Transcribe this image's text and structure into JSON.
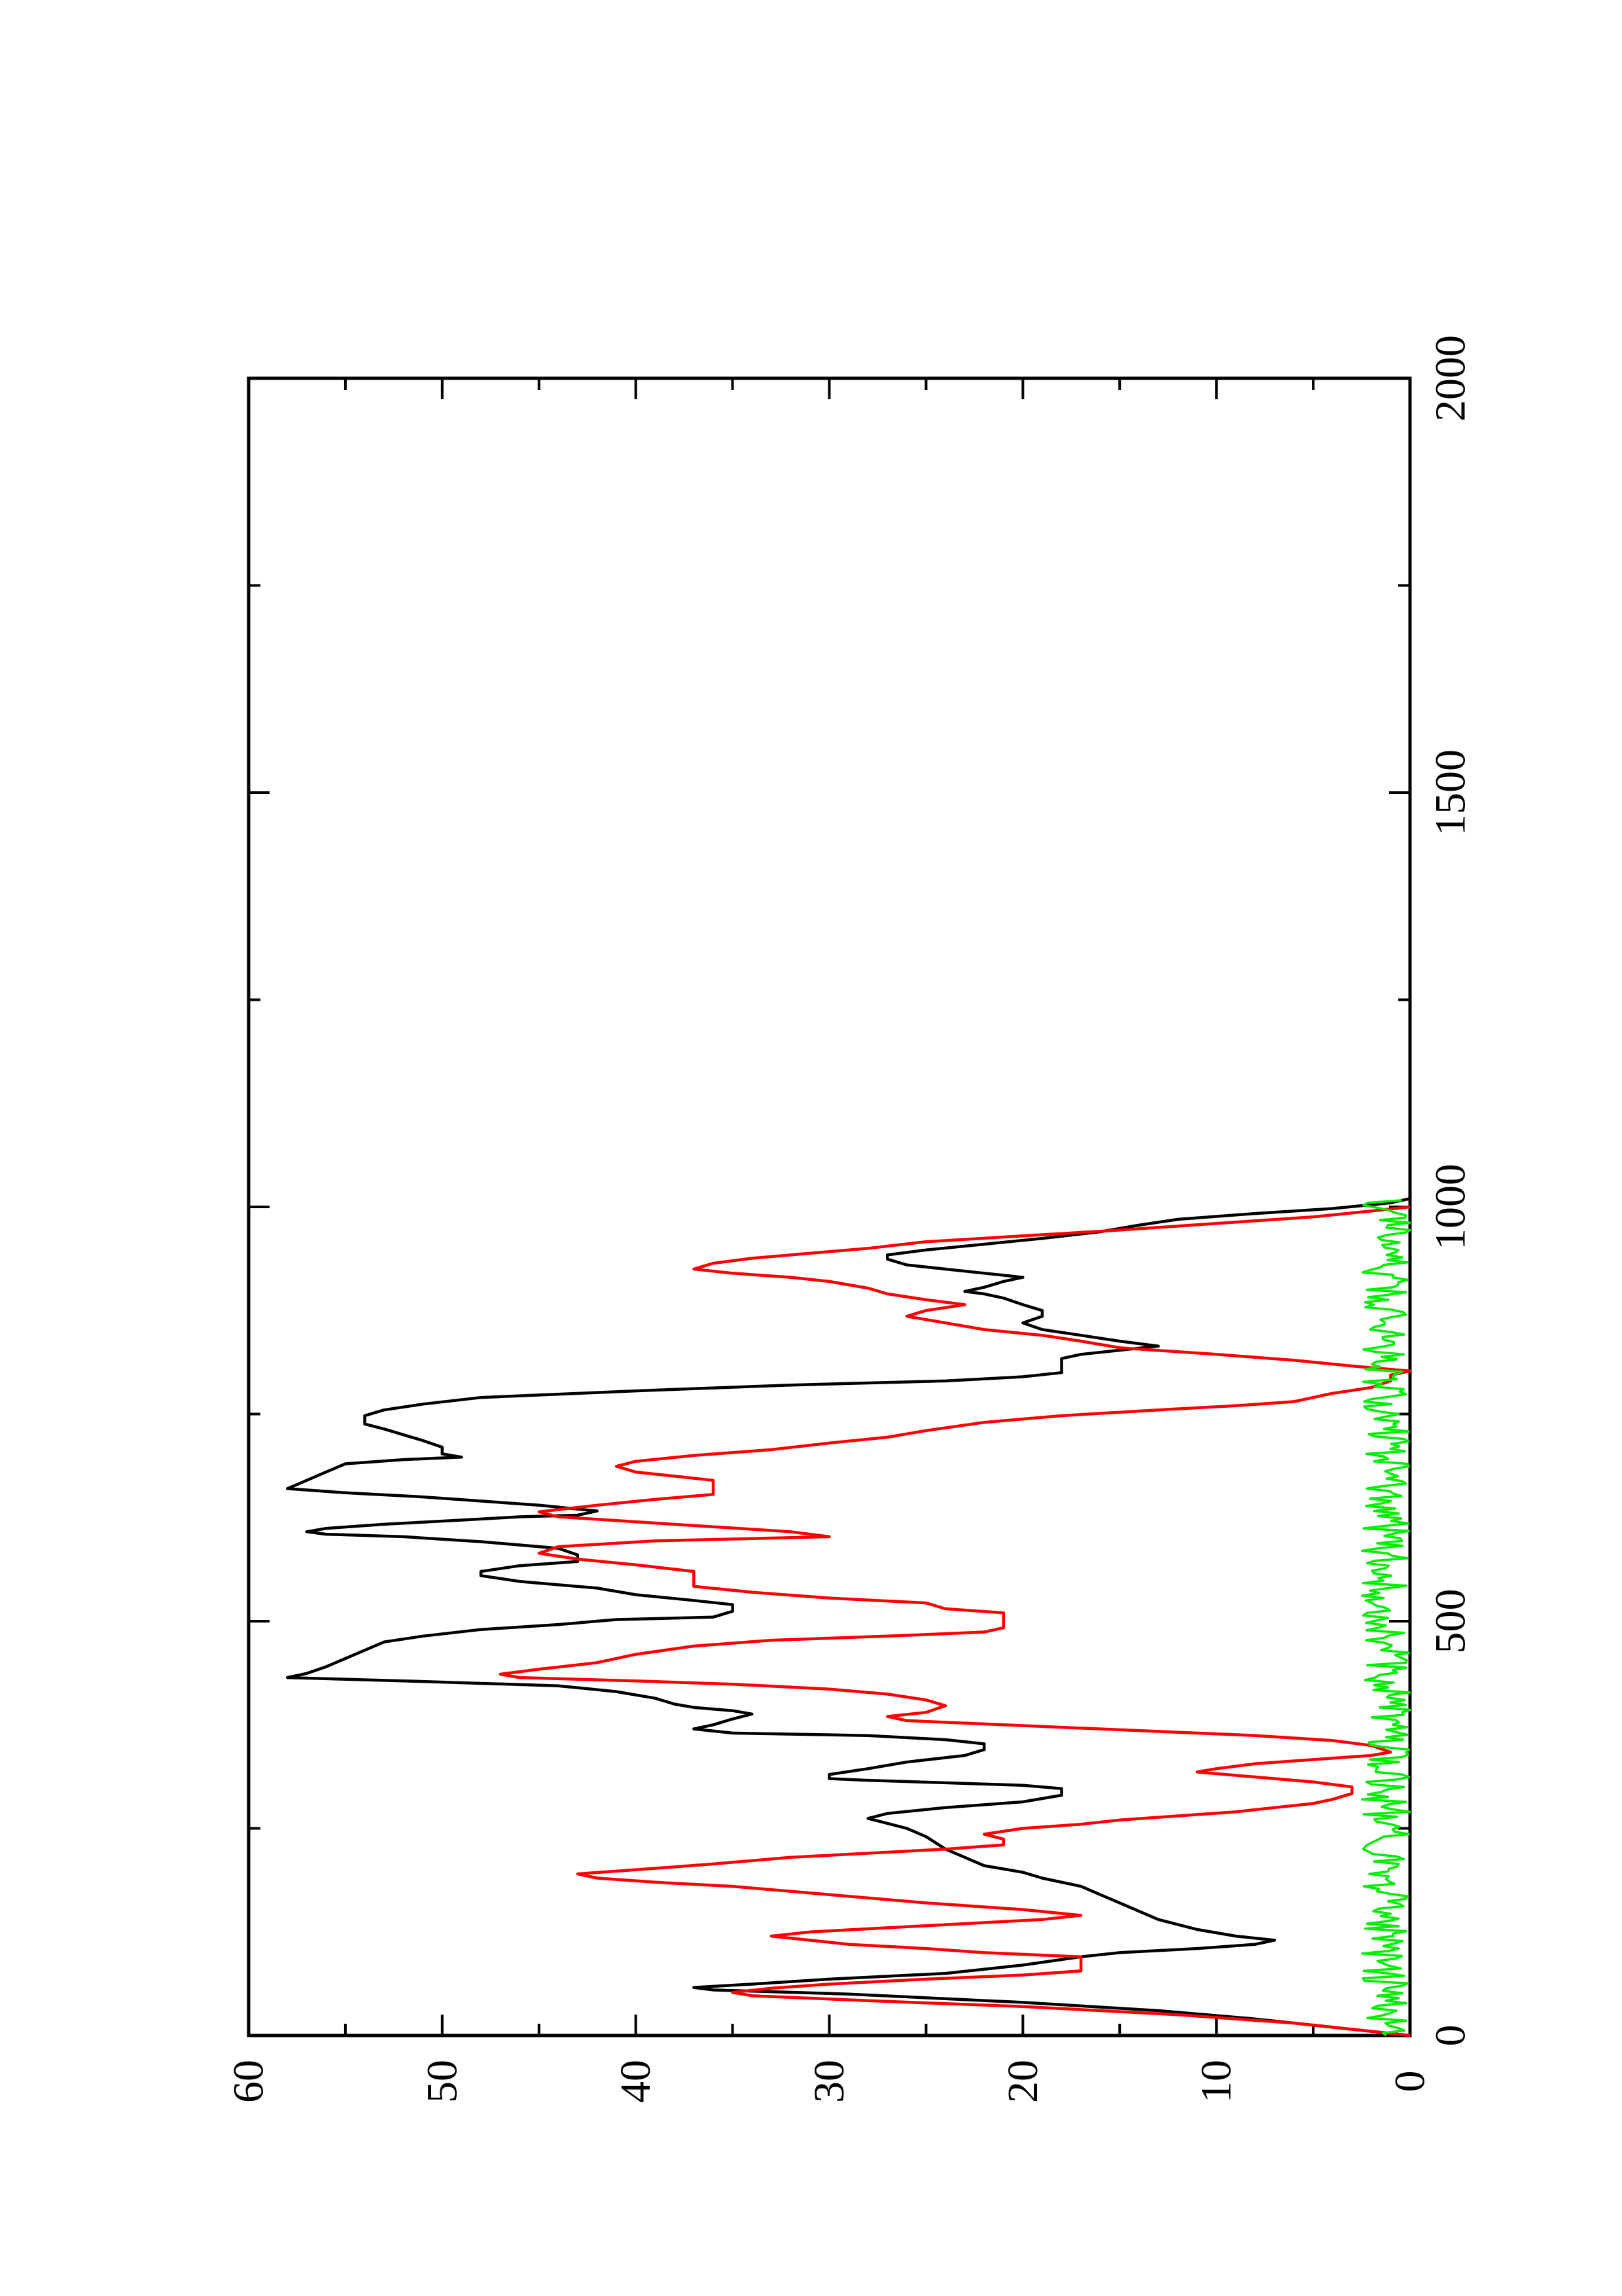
{
  "chart_data": {
    "type": "line",
    "orientation": "rotated-90-counterclockwise",
    "title": "",
    "xlabel": "",
    "ylabel": "",
    "xlim": [
      0,
      2000
    ],
    "ylim": [
      0,
      60
    ],
    "x_ticks_major": [
      0,
      500,
      1000,
      1500,
      2000
    ],
    "x_tick_labels": [
      "0",
      "500",
      "1000",
      "1500",
      "2000"
    ],
    "x_ticks_minor": [
      250,
      750,
      1250,
      1750
    ],
    "y_ticks_major": [
      0,
      10,
      20,
      30,
      40,
      50,
      60
    ],
    "y_tick_labels": [
      "0",
      "10",
      "20",
      "30",
      "40",
      "50",
      "60"
    ],
    "y_ticks_minor": [
      5,
      15,
      25,
      35,
      45,
      55
    ],
    "grid": false,
    "legend": "none",
    "series": [
      {
        "color": "#000000",
        "points": [
          [
            0,
            0
          ],
          [
            10,
            4
          ],
          [
            20,
            8
          ],
          [
            30,
            13
          ],
          [
            40,
            20
          ],
          [
            50,
            29
          ],
          [
            55,
            36
          ],
          [
            58,
            37
          ],
          [
            62,
            34
          ],
          [
            68,
            30
          ],
          [
            75,
            24
          ],
          [
            85,
            20
          ],
          [
            95,
            17
          ],
          [
            100,
            15
          ],
          [
            105,
            11
          ],
          [
            110,
            8
          ],
          [
            115,
            7
          ],
          [
            120,
            9
          ],
          [
            128,
            11
          ],
          [
            140,
            13
          ],
          [
            150,
            14
          ],
          [
            160,
            15
          ],
          [
            170,
            16
          ],
          [
            180,
            17
          ],
          [
            190,
            19
          ],
          [
            197,
            20
          ],
          [
            205,
            22
          ],
          [
            215,
            23
          ],
          [
            225,
            24
          ],
          [
            240,
            25
          ],
          [
            250,
            26
          ],
          [
            262,
            28
          ],
          [
            268,
            27
          ],
          [
            275,
            24
          ],
          [
            282,
            20
          ],
          [
            290,
            18
          ],
          [
            298,
            18
          ],
          [
            302,
            20
          ],
          [
            305,
            24
          ],
          [
            308,
            28
          ],
          [
            310,
            30
          ],
          [
            315,
            30
          ],
          [
            322,
            28
          ],
          [
            330,
            26
          ],
          [
            338,
            23
          ],
          [
            345,
            22
          ],
          [
            352,
            22
          ],
          [
            357,
            24
          ],
          [
            362,
            28
          ],
          [
            365,
            35
          ],
          [
            370,
            37
          ],
          [
            375,
            36
          ],
          [
            382,
            35
          ],
          [
            388,
            34
          ],
          [
            392,
            35
          ],
          [
            396,
            37
          ],
          [
            400,
            38
          ],
          [
            407,
            39
          ],
          [
            415,
            41
          ],
          [
            422,
            44
          ],
          [
            428,
            52
          ],
          [
            432,
            58
          ],
          [
            437,
            57
          ],
          [
            445,
            56
          ],
          [
            455,
            55
          ],
          [
            465,
            54
          ],
          [
            475,
            53
          ],
          [
            482,
            51
          ],
          [
            490,
            48
          ],
          [
            496,
            44
          ],
          [
            502,
            41
          ],
          [
            505,
            36
          ],
          [
            512,
            35
          ],
          [
            520,
            35
          ],
          [
            525,
            37
          ],
          [
            532,
            40
          ],
          [
            540,
            42
          ],
          [
            548,
            46
          ],
          [
            555,
            48
          ],
          [
            560,
            48
          ],
          [
            567,
            46
          ],
          [
            572,
            43
          ],
          [
            580,
            43
          ],
          [
            588,
            44
          ],
          [
            596,
            48
          ],
          [
            602,
            52
          ],
          [
            605,
            56
          ],
          [
            608,
            57
          ],
          [
            612,
            56
          ],
          [
            617,
            53
          ],
          [
            622,
            49
          ],
          [
            626,
            46
          ],
          [
            628,
            43
          ],
          [
            633,
            42
          ],
          [
            640,
            45
          ],
          [
            645,
            48
          ],
          [
            650,
            51
          ],
          [
            655,
            55
          ],
          [
            660,
            58
          ],
          [
            670,
            57
          ],
          [
            680,
            56
          ],
          [
            690,
            55
          ],
          [
            695,
            52
          ],
          [
            698,
            49
          ],
          [
            702,
            50
          ],
          [
            710,
            50
          ],
          [
            718,
            51
          ],
          [
            725,
            52
          ],
          [
            732,
            53
          ],
          [
            738,
            54
          ],
          [
            748,
            54
          ],
          [
            755,
            53
          ],
          [
            762,
            51
          ],
          [
            770,
            48
          ],
          [
            778,
            40
          ],
          [
            785,
            32
          ],
          [
            790,
            24
          ],
          [
            795,
            20
          ],
          [
            800,
            18
          ],
          [
            805,
            18
          ],
          [
            810,
            18
          ],
          [
            817,
            18
          ],
          [
            822,
            17
          ],
          [
            827,
            15
          ],
          [
            832,
            13
          ],
          [
            838,
            15
          ],
          [
            845,
            17
          ],
          [
            852,
            19
          ],
          [
            860,
            20
          ],
          [
            868,
            19
          ],
          [
            875,
            19
          ],
          [
            882,
            20
          ],
          [
            890,
            21
          ],
          [
            895,
            22
          ],
          [
            898,
            23
          ],
          [
            903,
            22
          ],
          [
            910,
            21
          ],
          [
            915,
            20
          ],
          [
            920,
            22
          ],
          [
            925,
            24
          ],
          [
            930,
            26
          ],
          [
            937,
            27
          ],
          [
            942,
            27
          ],
          [
            948,
            25
          ],
          [
            955,
            22
          ],
          [
            962,
            19
          ],
          [
            970,
            16
          ],
          [
            978,
            14
          ],
          [
            985,
            12
          ],
          [
            992,
            8
          ],
          [
            998,
            4
          ],
          [
            1005,
            1
          ],
          [
            1010,
            0
          ]
        ]
      },
      {
        "color": "#ff0000",
        "points": [
          [
            0,
            0
          ],
          [
            15,
            6
          ],
          [
            25,
            12
          ],
          [
            35,
            20
          ],
          [
            42,
            28
          ],
          [
            48,
            34
          ],
          [
            52,
            35
          ],
          [
            57,
            33
          ],
          [
            62,
            30
          ],
          [
            68,
            25
          ],
          [
            73,
            20
          ],
          [
            78,
            17
          ],
          [
            85,
            17
          ],
          [
            95,
            17
          ],
          [
            100,
            22
          ],
          [
            105,
            25
          ],
          [
            110,
            29
          ],
          [
            115,
            31
          ],
          [
            120,
            33
          ],
          [
            125,
            31
          ],
          [
            130,
            27
          ],
          [
            135,
            23
          ],
          [
            140,
            19
          ],
          [
            145,
            17
          ],
          [
            152,
            20
          ],
          [
            160,
            25
          ],
          [
            170,
            30
          ],
          [
            180,
            35
          ],
          [
            185,
            39
          ],
          [
            190,
            42
          ],
          [
            195,
            43
          ],
          [
            200,
            40
          ],
          [
            207,
            36
          ],
          [
            215,
            32
          ],
          [
            220,
            28
          ],
          [
            225,
            24
          ],
          [
            230,
            21
          ],
          [
            237,
            21
          ],
          [
            243,
            22
          ],
          [
            250,
            20
          ],
          [
            255,
            17
          ],
          [
            260,
            15
          ],
          [
            265,
            12
          ],
          [
            270,
            9
          ],
          [
            275,
            7
          ],
          [
            280,
            5
          ],
          [
            285,
            4
          ],
          [
            292,
            3
          ],
          [
            300,
            3
          ],
          [
            306,
            5
          ],
          [
            312,
            8
          ],
          [
            318,
            11
          ],
          [
            322,
            10
          ],
          [
            328,
            8
          ],
          [
            333,
            5
          ],
          [
            338,
            2
          ],
          [
            342,
            1
          ],
          [
            350,
            2
          ],
          [
            356,
            4
          ],
          [
            362,
            8
          ],
          [
            368,
            14
          ],
          [
            375,
            21
          ],
          [
            380,
            26
          ],
          [
            385,
            27
          ],
          [
            390,
            25
          ],
          [
            398,
            24
          ],
          [
            405,
            25
          ],
          [
            412,
            27
          ],
          [
            418,
            30
          ],
          [
            424,
            35
          ],
          [
            428,
            40
          ],
          [
            432,
            46
          ],
          [
            436,
            47
          ],
          [
            442,
            45
          ],
          [
            450,
            42
          ],
          [
            460,
            40
          ],
          [
            470,
            37
          ],
          [
            477,
            33
          ],
          [
            482,
            27
          ],
          [
            487,
            22
          ],
          [
            492,
            21
          ],
          [
            500,
            21
          ],
          [
            510,
            21
          ],
          [
            515,
            24
          ],
          [
            522,
            25
          ],
          [
            528,
            30
          ],
          [
            535,
            34
          ],
          [
            542,
            37
          ],
          [
            550,
            37
          ],
          [
            560,
            37
          ],
          [
            568,
            40
          ],
          [
            575,
            43
          ],
          [
            582,
            45
          ],
          [
            590,
            44
          ],
          [
            597,
            39
          ],
          [
            602,
            30
          ],
          [
            608,
            32
          ],
          [
            614,
            36
          ],
          [
            620,
            40
          ],
          [
            626,
            44
          ],
          [
            632,
            45
          ],
          [
            640,
            42
          ],
          [
            647,
            39
          ],
          [
            653,
            36
          ],
          [
            660,
            36
          ],
          [
            670,
            36
          ],
          [
            675,
            38
          ],
          [
            680,
            40
          ],
          [
            687,
            41
          ],
          [
            693,
            40
          ],
          [
            700,
            37
          ],
          [
            707,
            33
          ],
          [
            715,
            30
          ],
          [
            722,
            27
          ],
          [
            730,
            25
          ],
          [
            740,
            22
          ],
          [
            748,
            18
          ],
          [
            755,
            13
          ],
          [
            760,
            9
          ],
          [
            765,
            6
          ],
          [
            770,
            5
          ],
          [
            775,
            4
          ],
          [
            782,
            2
          ],
          [
            790,
            1
          ],
          [
            797,
            1
          ],
          [
            802,
            0
          ],
          [
            808,
            3
          ],
          [
            815,
            6
          ],
          [
            822,
            10
          ],
          [
            830,
            15
          ],
          [
            838,
            17
          ],
          [
            845,
            19
          ],
          [
            852,
            22
          ],
          [
            860,
            24
          ],
          [
            868,
            26
          ],
          [
            875,
            25
          ],
          [
            882,
            23
          ],
          [
            888,
            25
          ],
          [
            895,
            27
          ],
          [
            902,
            28
          ],
          [
            910,
            30
          ],
          [
            915,
            32
          ],
          [
            920,
            35
          ],
          [
            925,
            37
          ],
          [
            932,
            36
          ],
          [
            938,
            34
          ],
          [
            942,
            32
          ],
          [
            950,
            28
          ],
          [
            958,
            25
          ],
          [
            965,
            20
          ],
          [
            972,
            15
          ],
          [
            980,
            10
          ],
          [
            988,
            5
          ],
          [
            995,
            2
          ],
          [
            1000,
            0
          ]
        ]
      },
      {
        "color": "#00ee00",
        "noise_amplitude": 2.5,
        "x_start": 0,
        "x_end": 1010,
        "x_step": 3,
        "seed": 7
      }
    ]
  }
}
